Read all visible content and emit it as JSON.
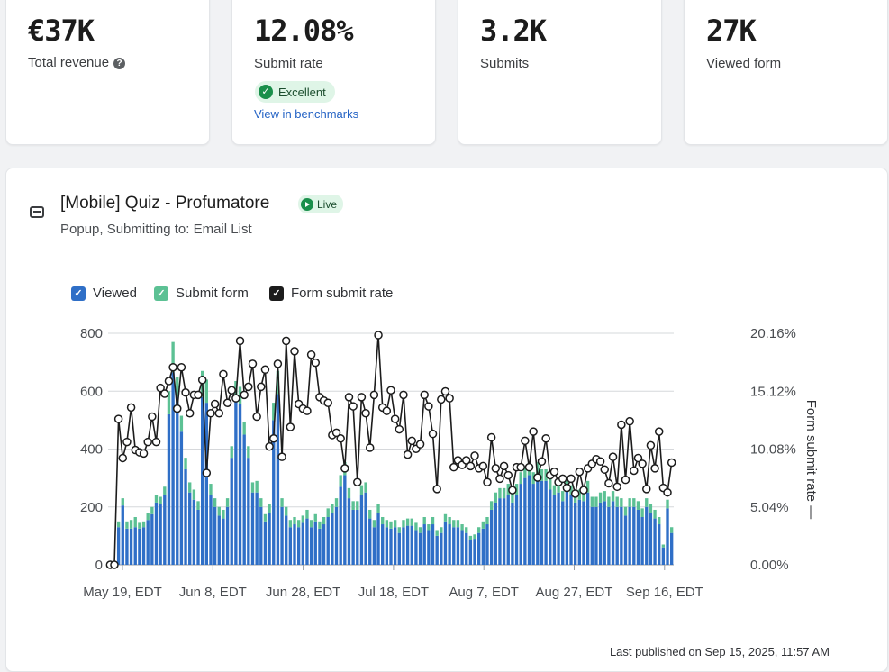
{
  "stats": [
    {
      "value": "€37K",
      "label": "Total revenue",
      "has_help": true
    },
    {
      "value": "12.08%",
      "label": "Submit rate",
      "badge": "Excellent",
      "link": "View in benchmarks"
    },
    {
      "value": "3.2K",
      "label": "Submits"
    },
    {
      "value": "27K",
      "label": "Viewed form"
    }
  ],
  "form": {
    "title": "[Mobile] Quiz - Profumatore",
    "status": "Live",
    "subtitle": "Popup, Submitting to: Email List"
  },
  "legend": [
    {
      "label": "Viewed",
      "color": "#2f6fc7"
    },
    {
      "label": "Submit form",
      "color": "#5cc194"
    },
    {
      "label": "Form submit rate",
      "color": "#1c1c1c"
    }
  ],
  "footer": "Last published on Sep 15, 2025, 11:57 AM",
  "chart_data": {
    "type": "bar",
    "start_date": "2025-05-19",
    "x_ticks": [
      "May 19, EDT",
      "Jun 8, EDT",
      "Jun 28, EDT",
      "Jul 18, EDT",
      "Aug 7, EDT",
      "Aug 27, EDT",
      "Sep 16, EDT"
    ],
    "ylim": [
      0,
      800
    ],
    "y_ticks": [
      "0",
      "200",
      "400",
      "600",
      "800"
    ],
    "y2lim": [
      0,
      20.16
    ],
    "y2_ticks": [
      "0.00%",
      "5.04%",
      "10.08%",
      "15.12%",
      "20.16%"
    ],
    "y2label": "Form submit rate",
    "series": [
      {
        "name": "Viewed",
        "kind": "bar",
        "values": [
          0,
          0,
          130,
          205,
          125,
          125,
          130,
          125,
          130,
          155,
          175,
          215,
          210,
          240,
          520,
          665,
          580,
          460,
          330,
          250,
          225,
          190,
          580,
          560,
          240,
          200,
          170,
          160,
          200,
          370,
          570,
          555,
          450,
          370,
          250,
          250,
          200,
          150,
          180,
          500,
          590,
          200,
          170,
          130,
          140,
          130,
          145,
          160,
          130,
          150,
          125,
          140,
          165,
          180,
          200,
          270,
          310,
          230,
          190,
          190,
          240,
          250,
          160,
          130,
          180,
          140,
          130,
          125,
          130,
          110,
          130,
          135,
          135,
          120,
          110,
          140,
          120,
          140,
          100,
          110,
          150,
          140,
          130,
          130,
          120,
          110,
          85,
          90,
          110,
          125,
          140,
          190,
          215,
          230,
          230,
          240,
          215,
          240,
          280,
          300,
          310,
          280,
          310,
          290,
          290,
          260,
          240,
          250,
          220,
          255,
          240,
          215,
          225,
          220,
          250,
          200,
          200,
          215,
          220,
          200,
          220,
          200,
          200,
          170,
          200,
          200,
          190,
          165,
          200,
          180,
          160,
          140,
          60,
          195,
          110
        ]
      },
      {
        "name": "Submit form",
        "kind": "bar",
        "values": [
          0,
          0,
          20,
          25,
          25,
          30,
          35,
          20,
          20,
          25,
          25,
          25,
          25,
          30,
          80,
          105,
          70,
          55,
          40,
          35,
          35,
          30,
          90,
          80,
          40,
          30,
          30,
          30,
          30,
          40,
          65,
          60,
          45,
          40,
          35,
          40,
          30,
          25,
          30,
          60,
          80,
          30,
          30,
          25,
          25,
          25,
          25,
          30,
          25,
          25,
          25,
          25,
          30,
          30,
          30,
          40,
          45,
          35,
          30,
          30,
          35,
          35,
          30,
          25,
          30,
          25,
          25,
          25,
          25,
          20,
          25,
          25,
          25,
          25,
          20,
          25,
          20,
          25,
          20,
          20,
          25,
          25,
          25,
          25,
          20,
          20,
          15,
          15,
          20,
          25,
          25,
          30,
          35,
          35,
          35,
          40,
          35,
          40,
          40,
          40,
          45,
          40,
          45,
          40,
          40,
          40,
          35,
          35,
          35,
          35,
          35,
          30,
          35,
          35,
          40,
          35,
          35,
          35,
          35,
          35,
          35,
          35,
          30,
          30,
          30,
          30,
          30,
          30,
          30,
          30,
          30,
          25,
          10,
          30,
          20
        ]
      },
      {
        "name": "Form submit rate",
        "kind": "line",
        "values": [
          0,
          0,
          12.7,
          9.3,
          10.7,
          13.7,
          10,
          9.8,
          9.7,
          10.7,
          12.9,
          10.7,
          15.4,
          14.9,
          16,
          17.2,
          13.6,
          17.2,
          15,
          13.2,
          14.8,
          14.8,
          16.1,
          8,
          13.2,
          14,
          13.2,
          16.6,
          14.1,
          15.2,
          14.5,
          19.5,
          14.8,
          15.5,
          17.5,
          12.9,
          15.5,
          17,
          10.3,
          11,
          17.5,
          9.4,
          19.5,
          12,
          18.6,
          14,
          13.6,
          13.4,
          18.3,
          17.6,
          14.6,
          14.3,
          14.1,
          11.3,
          11.5,
          11,
          8.4,
          14.6,
          13.8,
          7.2,
          14.6,
          13.2,
          10.2,
          14.8,
          20,
          13.7,
          13.4,
          15.2,
          12.7,
          11.8,
          14.8,
          9.6,
          10.8,
          10.1,
          10.5,
          14.8,
          13.8,
          11.4,
          6.6,
          14.4,
          15.1,
          14.5,
          8.5,
          9.1,
          8.7,
          9.1,
          8.6,
          9.5,
          8.4,
          8.6,
          7.2,
          11.1,
          8.4,
          7.5,
          8.6,
          7.8,
          6.5,
          8.5,
          8.5,
          10.8,
          8.5,
          11.6,
          7.6,
          9,
          11,
          7.8,
          8.1,
          7.2,
          7.5,
          6.7,
          7.5,
          6.2,
          8.1,
          6.5,
          8.4,
          8.8,
          9.2,
          9.0,
          8.3,
          7.1,
          9.4,
          6.8,
          12.2,
          7.4,
          12.5,
          8.2,
          9.3,
          8.8,
          6.6,
          10.4,
          8.4,
          11.6,
          6.7,
          6.3,
          8.9
        ]
      }
    ]
  }
}
